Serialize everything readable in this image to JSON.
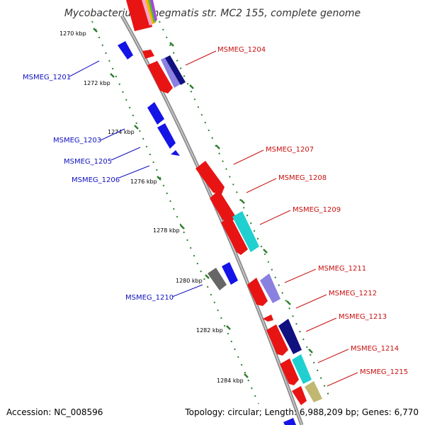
{
  "title": "Mycobacterium smegmatis str. MC2 155, complete genome",
  "footer": {
    "accession": "Accession: NC_008596",
    "topology": "Topology: circular; Length: 6,988,209 bp; Genes: 6,770"
  },
  "colors": {
    "backbone": "#8c8c8c",
    "ruler": "#2e7d2e",
    "left_label": "#1010c0",
    "right_label": "#c81010"
  },
  "ruler_ticks": [
    {
      "label": "1270 kbp"
    },
    {
      "label": "1272 kbp"
    },
    {
      "label": "1274 kbp"
    },
    {
      "label": "1276 kbp"
    },
    {
      "label": "1278 kbp"
    },
    {
      "label": "1280 kbp"
    },
    {
      "label": "1282 kbp"
    },
    {
      "label": "1284 kbp"
    }
  ],
  "genes_left": [
    {
      "name": "MSMEG_1201",
      "color": "#1414e6"
    },
    {
      "name": "MSMEG_1203",
      "color": "#1414e6"
    },
    {
      "name": "MSMEG_1205",
      "color": "#1414e6"
    },
    {
      "name": "MSMEG_1206",
      "color": "#1414e6"
    },
    {
      "name": "MSMEG_1210",
      "color": "#666666"
    }
  ],
  "genes_right": [
    {
      "name": "MSMEG_1204",
      "color": "#e81414"
    },
    {
      "name": "MSMEG_1207",
      "color": "#e81414"
    },
    {
      "name": "MSMEG_1208",
      "color": "#e81414"
    },
    {
      "name": "MSMEG_1209",
      "color": "#e81414"
    },
    {
      "name": "MSMEG_1211",
      "color": "#e81414"
    },
    {
      "name": "MSMEG_1212",
      "color": "#e81414"
    },
    {
      "name": "MSMEG_1213",
      "color": "#e81414"
    },
    {
      "name": "MSMEG_1214",
      "color": "#e81414"
    },
    {
      "name": "MSMEG_1215",
      "color": "#e81414"
    }
  ]
}
